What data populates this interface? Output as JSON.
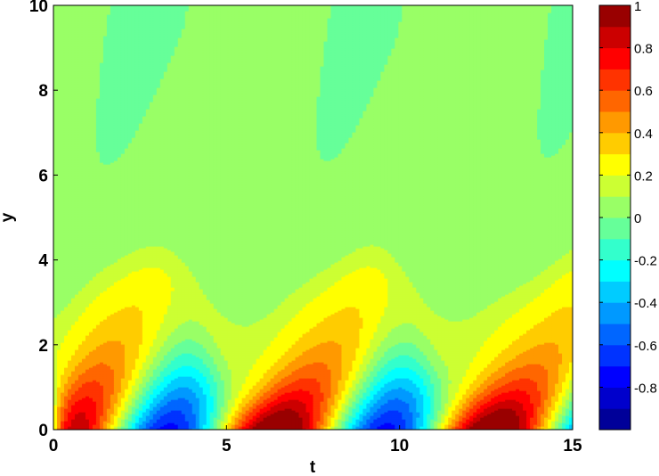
{
  "chart_data": {
    "type": "heatmap",
    "subtype": "filled-contour",
    "title": "",
    "xlabel": "t",
    "ylabel": "y",
    "xlim": [
      0,
      15
    ],
    "ylim": [
      0,
      10
    ],
    "xticks": [
      0,
      5,
      10,
      15
    ],
    "yticks": [
      0,
      2,
      4,
      6,
      8,
      10
    ],
    "colorbar": {
      "colormap": "jet",
      "clim": [
        -1,
        1
      ],
      "ticks": [
        1,
        0.8,
        0.6,
        0.4,
        0.2,
        0,
        -0.2,
        -0.4,
        -0.6,
        -0.8
      ],
      "levels": 20
    },
    "background_level": 0.1,
    "features": [
      {
        "kind": "peak",
        "t": 0.4,
        "y": 0.1,
        "value": 0.78
      },
      {
        "kind": "trough",
        "t": 3.2,
        "y": 0.0,
        "value": -0.9
      },
      {
        "kind": "peak",
        "t": 6.7,
        "y": 0.7,
        "value": 0.78
      },
      {
        "kind": "trough",
        "t": 9.5,
        "y": 0.0,
        "value": -0.9
      },
      {
        "kind": "peak",
        "t": 12.9,
        "y": 0.7,
        "value": 0.78
      },
      {
        "kind": "trough",
        "t": 15.2,
        "y": 0.0,
        "value": -0.5
      }
    ]
  }
}
